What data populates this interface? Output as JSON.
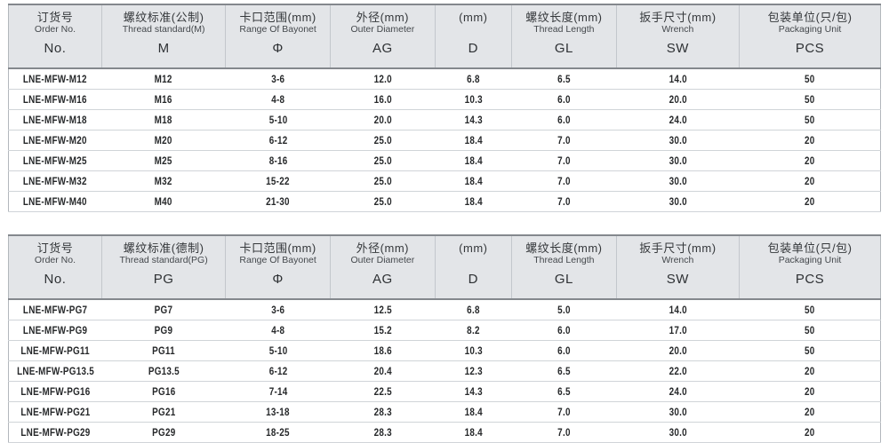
{
  "colors": {
    "header_bg": "#e3e5e8",
    "header_border_dark": "#84888d",
    "row_separator": "#d0d4d8",
    "header_text": "#35383b",
    "data_text": "#26282a",
    "page_bg": "#ffffff"
  },
  "tables": [
    {
      "name": "metric-thread-table",
      "header": [
        {
          "zh": "订货号",
          "en": "Order No.",
          "sym": "No."
        },
        {
          "zh": "螺纹标准(公制)",
          "en": "Thread standard(M)",
          "sym": "M"
        },
        {
          "zh": "卡口范围(mm)",
          "en": "Range Of Bayonet",
          "sym": "Φ"
        },
        {
          "zh": "外径(mm)",
          "en": "Outer Diameter",
          "sym": "AG"
        },
        {
          "zh": "(mm)",
          "en": "",
          "sym": "D"
        },
        {
          "zh": "螺纹长度(mm)",
          "en": "Thread Length",
          "sym": "GL"
        },
        {
          "zh": "扳手尺寸(mm)",
          "en": "Wrench",
          "sym": "SW"
        },
        {
          "zh": "包装单位(只/包)",
          "en": "Packaging Unit",
          "sym": "PCS"
        }
      ],
      "rows": [
        [
          "LNE-MFW-M12",
          "M12",
          "3-6",
          "12.0",
          "6.8",
          "6.5",
          "14.0",
          "50"
        ],
        [
          "LNE-MFW-M16",
          "M16",
          "4-8",
          "16.0",
          "10.3",
          "6.0",
          "20.0",
          "50"
        ],
        [
          "LNE-MFW-M18",
          "M18",
          "5-10",
          "20.0",
          "14.3",
          "6.0",
          "24.0",
          "50"
        ],
        [
          "LNE-MFW-M20",
          "M20",
          "6-12",
          "25.0",
          "18.4",
          "7.0",
          "30.0",
          "20"
        ],
        [
          "LNE-MFW-M25",
          "M25",
          "8-16",
          "25.0",
          "18.4",
          "7.0",
          "30.0",
          "20"
        ],
        [
          "LNE-MFW-M32",
          "M32",
          "15-22",
          "25.0",
          "18.4",
          "7.0",
          "30.0",
          "20"
        ],
        [
          "LNE-MFW-M40",
          "M40",
          "21-30",
          "25.0",
          "18.4",
          "7.0",
          "30.0",
          "20"
        ]
      ]
    },
    {
      "name": "pg-thread-table",
      "header": [
        {
          "zh": "订货号",
          "en": "Order No.",
          "sym": "No."
        },
        {
          "zh": "螺纹标准(德制)",
          "en": "Thread standard(PG)",
          "sym": "PG"
        },
        {
          "zh": "卡口范围(mm)",
          "en": "Range Of Bayonet",
          "sym": "Φ"
        },
        {
          "zh": "外径(mm)",
          "en": "Outer Diameter",
          "sym": "AG"
        },
        {
          "zh": "(mm)",
          "en": "",
          "sym": "D"
        },
        {
          "zh": "螺纹长度(mm)",
          "en": "Thread Length",
          "sym": "GL"
        },
        {
          "zh": "扳手尺寸(mm)",
          "en": "Wrench",
          "sym": "SW"
        },
        {
          "zh": "包装单位(只/包)",
          "en": "Packaging Unit",
          "sym": "PCS"
        }
      ],
      "rows": [
        [
          "LNE-MFW-PG7",
          "PG7",
          "3-6",
          "12.5",
          "6.8",
          "5.0",
          "14.0",
          "50"
        ],
        [
          "LNE-MFW-PG9",
          "PG9",
          "4-8",
          "15.2",
          "8.2",
          "6.0",
          "17.0",
          "50"
        ],
        [
          "LNE-MFW-PG11",
          "PG11",
          "5-10",
          "18.6",
          "10.3",
          "6.0",
          "20.0",
          "50"
        ],
        [
          "LNE-MFW-PG13.5",
          "PG13.5",
          "6-12",
          "20.4",
          "12.3",
          "6.5",
          "22.0",
          "20"
        ],
        [
          "LNE-MFW-PG16",
          "PG16",
          "7-14",
          "22.5",
          "14.3",
          "6.5",
          "24.0",
          "20"
        ],
        [
          "LNE-MFW-PG21",
          "PG21",
          "13-18",
          "28.3",
          "18.4",
          "7.0",
          "30.0",
          "20"
        ],
        [
          "LNE-MFW-PG29",
          "PG29",
          "18-25",
          "28.3",
          "18.4",
          "7.0",
          "30.0",
          "20"
        ]
      ]
    }
  ]
}
